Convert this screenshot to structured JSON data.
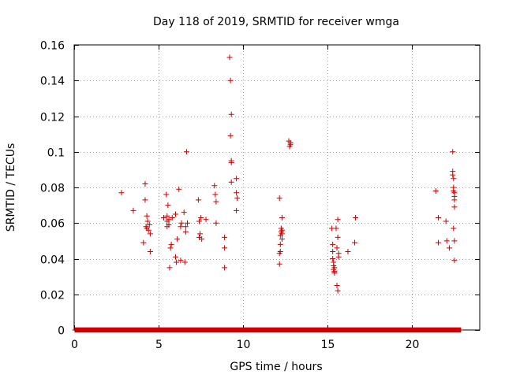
{
  "chart_data": {
    "type": "scatter",
    "title": "Day 118 of 2019, SRMTID for receiver wmga",
    "xlabel": "GPS time / hours",
    "ylabel": "SRMTID / TECUs",
    "xlim": [
      0,
      24
    ],
    "ylim": [
      0,
      0.16
    ],
    "x_ticks": [
      0,
      5,
      10,
      15,
      20
    ],
    "x_tick_labels": [
      "0",
      "5",
      "10",
      "15",
      "20"
    ],
    "y_ticks": [
      0,
      0.02,
      0.04,
      0.06,
      0.08,
      0.1,
      0.12,
      0.14,
      0.16
    ],
    "y_tick_labels": [
      "0",
      "0.02",
      "0.04",
      "0.06",
      "0.08",
      "0.1",
      "0.12",
      "0.14",
      "0.16"
    ],
    "grid": true,
    "grid_style": "dotted",
    "marker": "+",
    "marker_color": "#cc0000",
    "baseline": {
      "x_start": 0.05,
      "x_end": 22.9,
      "y": 0
    },
    "series": [
      {
        "name": "SRMTID",
        "points": [
          [
            2.8,
            0.077
          ],
          [
            3.5,
            0.067
          ],
          [
            4.1,
            0.049
          ],
          [
            4.2,
            0.082
          ],
          [
            4.2,
            0.073
          ],
          [
            4.25,
            0.058
          ],
          [
            4.3,
            0.064
          ],
          [
            4.3,
            0.057
          ],
          [
            4.35,
            0.061
          ],
          [
            4.4,
            0.056
          ],
          [
            4.45,
            0.059
          ],
          [
            4.5,
            0.054
          ],
          [
            4.5,
            0.044
          ],
          [
            5.3,
            0.063
          ],
          [
            5.45,
            0.076
          ],
          [
            5.5,
            0.064
          ],
          [
            5.5,
            0.061
          ],
          [
            5.5,
            0.058
          ],
          [
            5.55,
            0.07
          ],
          [
            5.6,
            0.062
          ],
          [
            5.6,
            0.059
          ],
          [
            5.65,
            0.035
          ],
          [
            5.7,
            0.046
          ],
          [
            5.75,
            0.048
          ],
          [
            5.8,
            0.063
          ],
          [
            6.0,
            0.041
          ],
          [
            6.0,
            0.065
          ],
          [
            6.05,
            0.038
          ],
          [
            6.1,
            0.051
          ],
          [
            6.2,
            0.079
          ],
          [
            6.3,
            0.058
          ],
          [
            6.35,
            0.06
          ],
          [
            6.3,
            0.039
          ],
          [
            6.5,
            0.066
          ],
          [
            6.55,
            0.038
          ],
          [
            6.6,
            0.058
          ],
          [
            6.6,
            0.055
          ],
          [
            6.65,
            0.1
          ],
          [
            6.7,
            0.06
          ],
          [
            7.35,
            0.073
          ],
          [
            7.4,
            0.061
          ],
          [
            7.4,
            0.052
          ],
          [
            7.45,
            0.054
          ],
          [
            7.5,
            0.063
          ],
          [
            7.55,
            0.051
          ],
          [
            7.8,
            0.062
          ],
          [
            8.3,
            0.081
          ],
          [
            8.35,
            0.076
          ],
          [
            8.4,
            0.072
          ],
          [
            8.4,
            0.06
          ],
          [
            8.9,
            0.046
          ],
          [
            8.9,
            0.052
          ],
          [
            8.9,
            0.035
          ],
          [
            9.2,
            0.153
          ],
          [
            9.25,
            0.14
          ],
          [
            9.3,
            0.121
          ],
          [
            9.25,
            0.109
          ],
          [
            9.3,
            0.095
          ],
          [
            9.3,
            0.094
          ],
          [
            9.3,
            0.083
          ],
          [
            9.6,
            0.085
          ],
          [
            9.6,
            0.077
          ],
          [
            9.65,
            0.074
          ],
          [
            9.6,
            0.067
          ],
          [
            12.15,
            0.037
          ],
          [
            12.15,
            0.043
          ],
          [
            12.15,
            0.074
          ],
          [
            12.2,
            0.044
          ],
          [
            12.2,
            0.048
          ],
          [
            12.2,
            0.053
          ],
          [
            12.25,
            0.055
          ],
          [
            12.25,
            0.057
          ],
          [
            12.3,
            0.056
          ],
          [
            12.3,
            0.054
          ],
          [
            12.3,
            0.063
          ],
          [
            12.3,
            0.051
          ],
          [
            12.7,
            0.106
          ],
          [
            12.75,
            0.103
          ],
          [
            12.8,
            0.104
          ],
          [
            12.8,
            0.105
          ],
          [
            15.25,
            0.057
          ],
          [
            15.3,
            0.048
          ],
          [
            15.3,
            0.044
          ],
          [
            15.3,
            0.04
          ],
          [
            15.35,
            0.038
          ],
          [
            15.35,
            0.036
          ],
          [
            15.35,
            0.034
          ],
          [
            15.4,
            0.035
          ],
          [
            15.4,
            0.033
          ],
          [
            15.4,
            0.032
          ],
          [
            15.5,
            0.057
          ],
          [
            15.55,
            0.046
          ],
          [
            15.55,
            0.025
          ],
          [
            15.6,
            0.022
          ],
          [
            15.6,
            0.052
          ],
          [
            15.6,
            0.062
          ],
          [
            15.65,
            0.041
          ],
          [
            15.65,
            0.043
          ],
          [
            16.2,
            0.044
          ],
          [
            16.6,
            0.049
          ],
          [
            16.65,
            0.063
          ],
          [
            21.4,
            0.078
          ],
          [
            21.55,
            0.049
          ],
          [
            21.55,
            0.063
          ],
          [
            22.0,
            0.061
          ],
          [
            22.05,
            0.05
          ],
          [
            22.2,
            0.046
          ],
          [
            22.4,
            0.1
          ],
          [
            22.4,
            0.089
          ],
          [
            22.4,
            0.087
          ],
          [
            22.45,
            0.085
          ],
          [
            22.45,
            0.08
          ],
          [
            22.45,
            0.078
          ],
          [
            22.5,
            0.077
          ],
          [
            22.5,
            0.075
          ],
          [
            22.5,
            0.073
          ],
          [
            22.5,
            0.069
          ],
          [
            22.5,
            0.05
          ],
          [
            22.45,
            0.057
          ],
          [
            22.5,
            0.039
          ]
        ]
      }
    ]
  }
}
